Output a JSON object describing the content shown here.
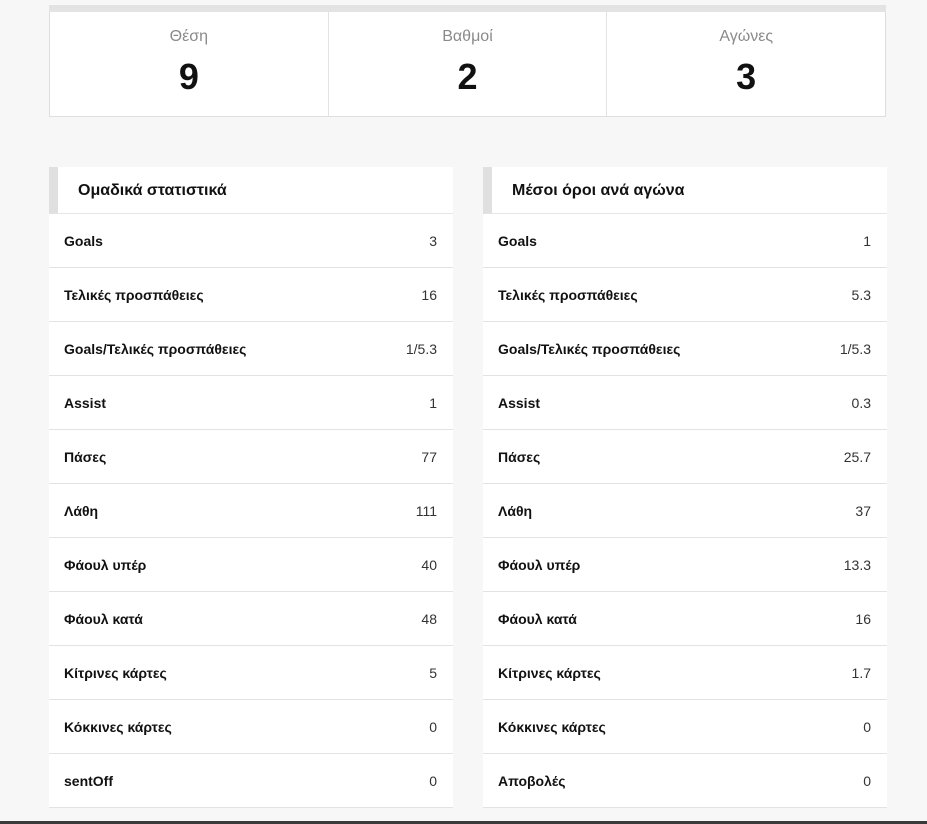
{
  "summary": [
    {
      "label": "Θέση",
      "value": "9"
    },
    {
      "label": "Βαθμοί",
      "value": "2"
    },
    {
      "label": "Αγώνες",
      "value": "3"
    }
  ],
  "team_stats": {
    "title": "Ομαδικά στατιστικά",
    "rows": [
      {
        "label": "Goals",
        "value": "3"
      },
      {
        "label": "Τελικές προσπάθειες",
        "value": "16"
      },
      {
        "label": "Goals/Τελικές προσπάθειες",
        "value": "1/5.3"
      },
      {
        "label": "Assist",
        "value": "1"
      },
      {
        "label": "Πάσες",
        "value": "77"
      },
      {
        "label": "Λάθη",
        "value": "111"
      },
      {
        "label": "Φάουλ υπέρ",
        "value": "40"
      },
      {
        "label": "Φάουλ κατά",
        "value": "48"
      },
      {
        "label": "Κίτρινες κάρτες",
        "value": "5"
      },
      {
        "label": "Κόκκινες κάρτες",
        "value": "0"
      },
      {
        "label": "sentOff",
        "value": "0"
      }
    ]
  },
  "averages": {
    "title": "Μέσοι όροι ανά αγώνα",
    "rows": [
      {
        "label": "Goals",
        "value": "1"
      },
      {
        "label": "Τελικές προσπάθειες",
        "value": "5.3"
      },
      {
        "label": "Goals/Τελικές προσπάθειες",
        "value": "1/5.3"
      },
      {
        "label": "Assist",
        "value": "0.3"
      },
      {
        "label": "Πάσες",
        "value": "25.7"
      },
      {
        "label": "Λάθη",
        "value": "37"
      },
      {
        "label": "Φάουλ υπέρ",
        "value": "13.3"
      },
      {
        "label": "Φάουλ κατά",
        "value": "16"
      },
      {
        "label": "Κίτρινες κάρτες",
        "value": "1.7"
      },
      {
        "label": "Κόκκινες κάρτες",
        "value": "0"
      },
      {
        "label": "Αποβολές",
        "value": "0"
      }
    ]
  }
}
